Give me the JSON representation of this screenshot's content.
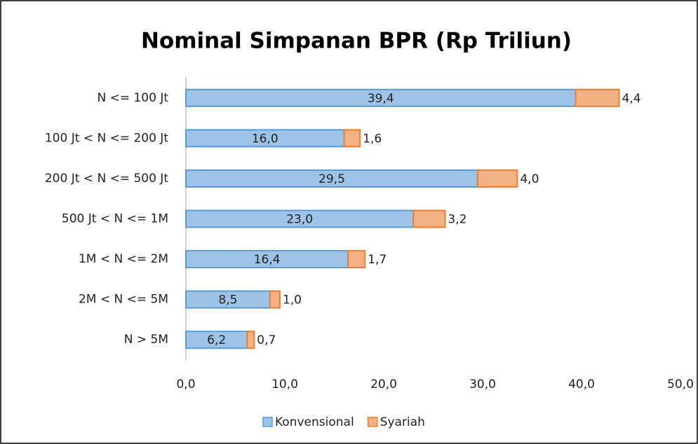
{
  "chart_data": {
    "type": "stacked-barh",
    "title": "Nominal Simpanan BPR (Rp Triliun)",
    "categories": [
      "N <= 100 Jt",
      "100 Jt < N <= 200 Jt",
      "200 Jt < N <= 500 Jt",
      "500 Jt < N <= 1M",
      "1M < N <= 2M",
      "2M < N <= 5M",
      "N > 5M"
    ],
    "series": [
      {
        "name": "Konvensional",
        "color": "#9dc3e6",
        "edgecolor": "#5b9bd5",
        "values": [
          39.4,
          16.0,
          29.5,
          23.0,
          16.4,
          8.5,
          6.2
        ],
        "value_labels": [
          "39,4",
          "16,0",
          "29,5",
          "23,0",
          "16,4",
          "8,5",
          "6,2"
        ]
      },
      {
        "name": "Syariah",
        "color": "#f4b183",
        "edgecolor": "#ed7d31",
        "values": [
          4.4,
          1.6,
          4.0,
          3.2,
          1.7,
          1.0,
          0.7
        ],
        "value_labels": [
          "4,4",
          "1,6",
          "4,0",
          "3,2",
          "1,7",
          "1,0",
          "0,7"
        ]
      }
    ],
    "xlim": [
      0,
      50
    ],
    "xticks": [
      {
        "value": 0,
        "label": "0,0"
      },
      {
        "value": 10,
        "label": "10,0"
      },
      {
        "value": 20,
        "label": "20,0"
      },
      {
        "value": 30,
        "label": "30,0"
      },
      {
        "value": 40,
        "label": "40,0"
      },
      {
        "value": 50,
        "label": "50,0"
      }
    ],
    "legend": "bottom"
  }
}
